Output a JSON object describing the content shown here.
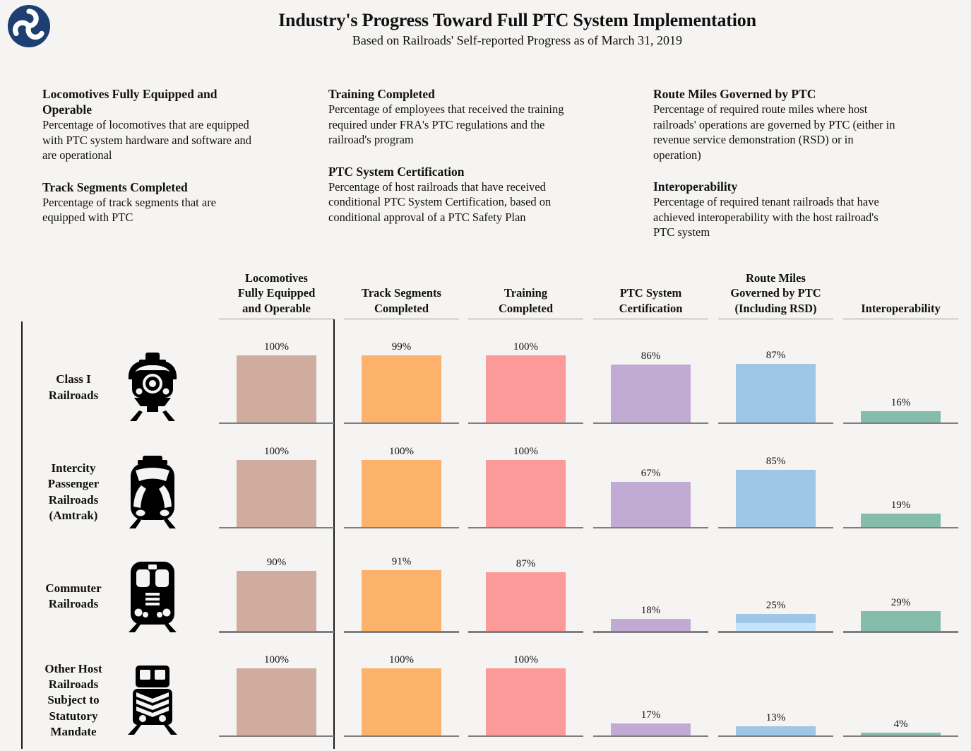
{
  "header": {
    "title": "Industry's Progress Toward Full PTC System Implementation",
    "subtitle": "Based on Railroads' Self-reported Progress as of March 31, 2019",
    "logo": {
      "name": "US DOT triskelion logo",
      "color": "#1d3f72"
    }
  },
  "definitions": [
    {
      "term": "Locomotives Fully Equipped and Operable",
      "description": "Percentage of locomotives that are equipped with PTC system hardware and software and are operational"
    },
    {
      "term": "Track Segments Completed",
      "description": "Percentage of track segments that are equipped with PTC"
    },
    {
      "term": "Training Completed",
      "description": "Percentage of employees that received the training required under FRA's PTC regulations and the railroad's program"
    },
    {
      "term": "PTC System Certification",
      "description": "Percentage of host railroads that have received conditional PTC System Certification, based on conditional approval of a PTC Safety Plan"
    },
    {
      "term": "Route Miles Governed by PTC",
      "description": "Percentage of required route miles where host railroads' operations are governed by PTC (either in revenue service demonstration (RSD) or in operation)"
    },
    {
      "term": "Interoperability",
      "description": "Percentage of required tenant railroads that have achieved interoperability with the host railroad's PTC system"
    }
  ],
  "chart_data": {
    "type": "bar",
    "title": "Industry's Progress Toward Full PTC System Implementation",
    "subtitle": "Based on Railroads' Self-reported Progress as of March 31, 2019",
    "value_suffix": "%",
    "ylim": [
      0,
      100
    ],
    "grid": false,
    "columns": [
      {
        "label": "Locomotives Fully Equipped and Operable",
        "lines": [
          "Locomotives",
          "Fully Equipped",
          "and Operable"
        ],
        "color": "#cfac9e"
      },
      {
        "label": "Track Segments Completed",
        "lines": [
          "Track Segments",
          "Completed"
        ],
        "color": "#fcb26b"
      },
      {
        "label": "Training Completed",
        "lines": [
          "Training",
          "Completed"
        ],
        "color": "#fb9a98"
      },
      {
        "label": "PTC System Certification",
        "lines": [
          "PTC System",
          "Certification"
        ],
        "color": "#c1aad3"
      },
      {
        "label": "Route Miles Governed by PTC (Including RSD)",
        "lines": [
          "Route Miles",
          "Governed by PTC",
          "(Including RSD)"
        ],
        "color": "#9fc6e4"
      },
      {
        "label": "Interoperability",
        "lines": [
          "Interoperability"
        ],
        "color": "#86bcac"
      }
    ],
    "rows": [
      {
        "label": "Class I Railroads",
        "label_lines": [
          "Class I",
          "Railroads"
        ],
        "icon": "steam-locomotive-icon",
        "values": [
          100,
          99,
          100,
          86,
          87,
          16
        ]
      },
      {
        "label": "Intercity Passenger Railroads (Amtrak)",
        "label_lines": [
          "Intercity",
          "Passenger",
          "Railroads",
          "(Amtrak)"
        ],
        "icon": "intercity-train-icon",
        "values": [
          100,
          100,
          100,
          67,
          85,
          19
        ]
      },
      {
        "label": "Commuter Railroads",
        "label_lines": [
          "Commuter",
          "Railroads"
        ],
        "icon": "commuter-train-icon",
        "values": [
          90,
          91,
          87,
          18,
          25,
          29
        ],
        "stacked_bar": {
          "column_index": 4,
          "segments": [
            {
              "name": "light-segment",
              "value": 12,
              "color": "#c5e3fa"
            },
            {
              "name": "dark-segment",
              "value": 13,
              "color": "#9fc6e4"
            }
          ]
        }
      },
      {
        "label": "Other Host Railroads Subject to Statutory Mandate",
        "label_lines": [
          "Other Host",
          "Railroads",
          "Subject to",
          "Statutory",
          "Mandate"
        ],
        "icon": "freight-locomotive-icon",
        "values": [
          100,
          100,
          100,
          17,
          13,
          4
        ]
      }
    ]
  }
}
